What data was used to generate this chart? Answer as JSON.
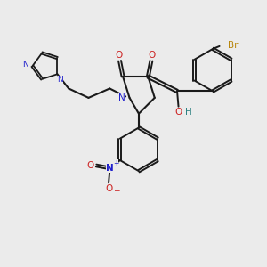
{
  "background_color": "#ebebeb",
  "figure_size": [
    3.0,
    3.0
  ],
  "dpi": 100,
  "bond_color": "#1a1a1a",
  "n_color": "#2020cc",
  "o_color": "#cc2020",
  "br_color": "#b8860b",
  "h_color": "#2a8080",
  "label_fontsize": 7.5,
  "label_fontsize_small": 6.5,
  "xlim": [
    0,
    10
  ],
  "ylim": [
    0,
    10
  ]
}
